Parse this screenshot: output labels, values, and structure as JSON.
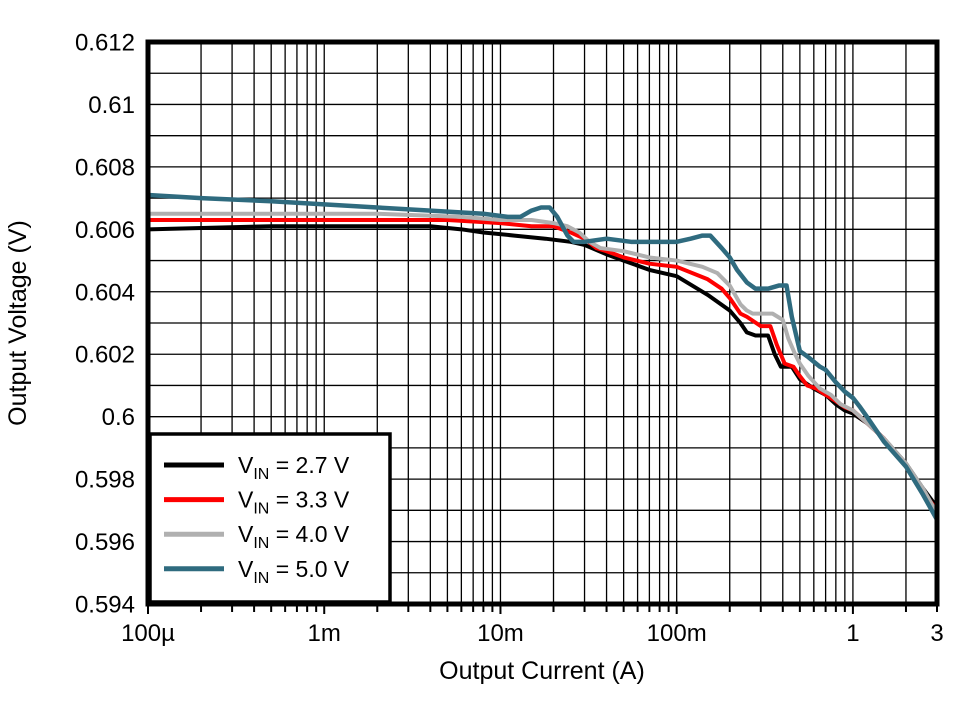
{
  "chart_data": {
    "type": "line",
    "title": "",
    "xlabel": "Output Current (A)",
    "ylabel": "Output Voltage (V)",
    "x_scale": "log",
    "y_scale": "linear",
    "xlim": [
      0.0001,
      3
    ],
    "ylim": [
      0.594,
      0.612
    ],
    "y_minor_step": 0.001,
    "grid": true,
    "grid_color": "#000000",
    "frame_color": "#000000",
    "background_color": "#ffffff",
    "x_ticks": [
      {
        "v": 0.0001,
        "label": "100µ"
      },
      {
        "v": 0.001,
        "label": "1m"
      },
      {
        "v": 0.01,
        "label": "10m"
      },
      {
        "v": 0.1,
        "label": "100m"
      },
      {
        "v": 1,
        "label": "1"
      },
      {
        "v": 3,
        "label": "3"
      }
    ],
    "y_ticks": [
      {
        "v": 0.612,
        "label": "0.612"
      },
      {
        "v": 0.61,
        "label": "0.61"
      },
      {
        "v": 0.608,
        "label": "0.608"
      },
      {
        "v": 0.606,
        "label": "0.606"
      },
      {
        "v": 0.604,
        "label": "0.604"
      },
      {
        "v": 0.602,
        "label": "0.602"
      },
      {
        "v": 0.6,
        "label": "0.6"
      },
      {
        "v": 0.598,
        "label": "0.598"
      },
      {
        "v": 0.596,
        "label": "0.596"
      },
      {
        "v": 0.594,
        "label": "0.594"
      }
    ],
    "legend": {
      "position": "bottom-left"
    },
    "series": [
      {
        "name": "VIN = 2.7 V",
        "legend_label": {
          "pre": "V",
          "sub": "IN",
          "post": " = 2.7 V"
        },
        "color": "#000000",
        "points": [
          [
            0.0001,
            0.606
          ],
          [
            0.0005,
            0.6061
          ],
          [
            0.004,
            0.6061
          ],
          [
            0.006,
            0.606
          ],
          [
            0.008,
            0.6059
          ],
          [
            0.012,
            0.6058
          ],
          [
            0.018,
            0.6057
          ],
          [
            0.025,
            0.6056
          ],
          [
            0.03,
            0.6055
          ],
          [
            0.04,
            0.6052
          ],
          [
            0.05,
            0.605
          ],
          [
            0.07,
            0.6047
          ],
          [
            0.1,
            0.6045
          ],
          [
            0.15,
            0.6039
          ],
          [
            0.2,
            0.6034
          ],
          [
            0.23,
            0.603
          ],
          [
            0.25,
            0.6027
          ],
          [
            0.28,
            0.6026
          ],
          [
            0.33,
            0.6026
          ],
          [
            0.36,
            0.602
          ],
          [
            0.39,
            0.6016
          ],
          [
            0.45,
            0.6016
          ],
          [
            0.5,
            0.6012
          ],
          [
            0.6,
            0.6009
          ],
          [
            0.7,
            0.6007
          ],
          [
            0.8,
            0.6004
          ],
          [
            0.9,
            0.6002
          ],
          [
            1.0,
            0.6001
          ],
          [
            1.2,
            0.5998
          ],
          [
            1.5,
            0.5993
          ],
          [
            2.0,
            0.5985
          ],
          [
            2.5,
            0.5977
          ],
          [
            3.0,
            0.5971
          ]
        ]
      },
      {
        "name": "VIN = 3.3 V",
        "legend_label": {
          "pre": "V",
          "sub": "IN",
          "post": " = 3.3 V"
        },
        "color": "#fe0000",
        "points": [
          [
            0.0001,
            0.6063
          ],
          [
            0.002,
            0.6063
          ],
          [
            0.005,
            0.6063
          ],
          [
            0.01,
            0.6062
          ],
          [
            0.015,
            0.6061
          ],
          [
            0.02,
            0.6061
          ],
          [
            0.025,
            0.6059
          ],
          [
            0.03,
            0.6057
          ],
          [
            0.035,
            0.6054
          ],
          [
            0.04,
            0.6053
          ],
          [
            0.05,
            0.6051
          ],
          [
            0.07,
            0.6049
          ],
          [
            0.1,
            0.6048
          ],
          [
            0.15,
            0.6044
          ],
          [
            0.18,
            0.6041
          ],
          [
            0.2,
            0.6038
          ],
          [
            0.23,
            0.6033
          ],
          [
            0.25,
            0.6032
          ],
          [
            0.3,
            0.6029
          ],
          [
            0.34,
            0.6029
          ],
          [
            0.37,
            0.6023
          ],
          [
            0.41,
            0.6017
          ],
          [
            0.46,
            0.6016
          ],
          [
            0.5,
            0.6013
          ],
          [
            0.55,
            0.601
          ],
          [
            0.62,
            0.6009
          ],
          [
            0.7,
            0.6007
          ],
          [
            0.8,
            0.6005
          ],
          [
            0.9,
            0.6003
          ],
          [
            1.0,
            0.6002
          ],
          [
            1.2,
            0.5998
          ],
          [
            1.5,
            0.5993
          ],
          [
            2.0,
            0.5984
          ],
          [
            2.5,
            0.5976
          ],
          [
            3.0,
            0.597
          ]
        ]
      },
      {
        "name": "VIN = 4.0 V",
        "legend_label": {
          "pre": "V",
          "sub": "IN",
          "post": " = 4.0 V"
        },
        "color": "#b0b0b0",
        "points": [
          [
            0.0001,
            0.6065
          ],
          [
            0.002,
            0.6065
          ],
          [
            0.006,
            0.6064
          ],
          [
            0.01,
            0.6063
          ],
          [
            0.015,
            0.6063
          ],
          [
            0.02,
            0.6062
          ],
          [
            0.024,
            0.6061
          ],
          [
            0.028,
            0.6059
          ],
          [
            0.032,
            0.6056
          ],
          [
            0.037,
            0.6054
          ],
          [
            0.05,
            0.6053
          ],
          [
            0.07,
            0.6051
          ],
          [
            0.1,
            0.605
          ],
          [
            0.14,
            0.6048
          ],
          [
            0.17,
            0.6046
          ],
          [
            0.2,
            0.6042
          ],
          [
            0.23,
            0.6036
          ],
          [
            0.25,
            0.6034
          ],
          [
            0.27,
            0.6033
          ],
          [
            0.35,
            0.6033
          ],
          [
            0.4,
            0.6031
          ],
          [
            0.43,
            0.6025
          ],
          [
            0.47,
            0.602
          ],
          [
            0.5,
            0.6017
          ],
          [
            0.56,
            0.6013
          ],
          [
            0.65,
            0.6009
          ],
          [
            0.75,
            0.6007
          ],
          [
            0.85,
            0.6004
          ],
          [
            1.0,
            0.6002
          ],
          [
            1.2,
            0.5998
          ],
          [
            1.5,
            0.5993
          ],
          [
            2.0,
            0.5985
          ],
          [
            2.5,
            0.5977
          ],
          [
            3.0,
            0.5969
          ]
        ]
      },
      {
        "name": "VIN = 5.0 V",
        "legend_label": {
          "pre": "V",
          "sub": "IN",
          "post": " = 5.0 V"
        },
        "color": "#2f6b7f",
        "points": [
          [
            0.0001,
            0.6071
          ],
          [
            0.0002,
            0.607
          ],
          [
            0.0005,
            0.6069
          ],
          [
            0.001,
            0.6068
          ],
          [
            0.002,
            0.6067
          ],
          [
            0.004,
            0.6066
          ],
          [
            0.008,
            0.6065
          ],
          [
            0.011,
            0.6064
          ],
          [
            0.013,
            0.6064
          ],
          [
            0.015,
            0.6066
          ],
          [
            0.017,
            0.6067
          ],
          [
            0.019,
            0.6067
          ],
          [
            0.021,
            0.6064
          ],
          [
            0.024,
            0.6058
          ],
          [
            0.026,
            0.6056
          ],
          [
            0.03,
            0.6056
          ],
          [
            0.04,
            0.6057
          ],
          [
            0.055,
            0.6056
          ],
          [
            0.08,
            0.6056
          ],
          [
            0.1,
            0.6056
          ],
          [
            0.12,
            0.6057
          ],
          [
            0.14,
            0.6058
          ],
          [
            0.155,
            0.6058
          ],
          [
            0.18,
            0.6054
          ],
          [
            0.2,
            0.6051
          ],
          [
            0.22,
            0.6047
          ],
          [
            0.25,
            0.6043
          ],
          [
            0.28,
            0.6041
          ],
          [
            0.33,
            0.6041
          ],
          [
            0.38,
            0.6042
          ],
          [
            0.42,
            0.6042
          ],
          [
            0.45,
            0.6032
          ],
          [
            0.5,
            0.6021
          ],
          [
            0.56,
            0.6019
          ],
          [
            0.65,
            0.6016
          ],
          [
            0.7,
            0.6015
          ],
          [
            0.8,
            0.6011
          ],
          [
            0.9,
            0.6008
          ],
          [
            1.0,
            0.6006
          ],
          [
            1.1,
            0.6003
          ],
          [
            1.2,
            0.6
          ],
          [
            1.5,
            0.5992
          ],
          [
            2.0,
            0.5984
          ],
          [
            2.5,
            0.5975
          ],
          [
            3.0,
            0.5967
          ]
        ]
      }
    ]
  }
}
